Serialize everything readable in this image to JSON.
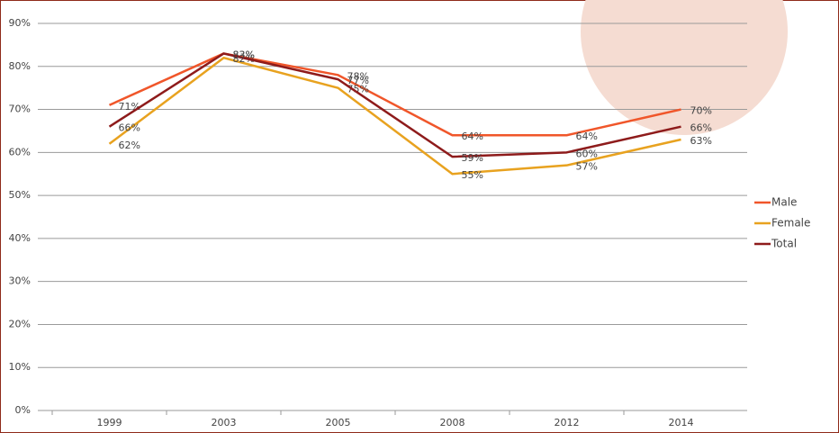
{
  "chart_data": {
    "type": "line",
    "categories": [
      "1999",
      "2003",
      "2005",
      "2008",
      "2012",
      "2014"
    ],
    "series": [
      {
        "name": "Male",
        "color": "#f0562a",
        "values": [
          71,
          83,
          78,
          64,
          64,
          70
        ],
        "value_labels": [
          "71%",
          "83%",
          "78%",
          "64%",
          "64%",
          "70%"
        ]
      },
      {
        "name": "Female",
        "color": "#e8a21f",
        "values": [
          62,
          82,
          75,
          55,
          57,
          63
        ],
        "value_labels": [
          "62%",
          "82%",
          "75%",
          "55%",
          "57%",
          "63%"
        ]
      },
      {
        "name": "Total",
        "color": "#8e1b1b",
        "values": [
          66,
          83,
          77,
          59,
          60,
          66
        ],
        "value_labels": [
          "66%",
          "83%",
          "77%",
          "59%",
          "60%",
          "66%"
        ]
      }
    ],
    "ylim": [
      0,
      90
    ],
    "yticks": [
      {
        "value": 0,
        "label": "0%"
      },
      {
        "value": 10,
        "label": "10%"
      },
      {
        "value": 20,
        "label": "20%"
      },
      {
        "value": 30,
        "label": "30%"
      },
      {
        "value": 40,
        "label": "40%"
      },
      {
        "value": 50,
        "label": "50%"
      },
      {
        "value": 60,
        "label": "60%"
      },
      {
        "value": 70,
        "label": "70%"
      },
      {
        "value": 80,
        "label": "80%"
      },
      {
        "value": 90,
        "label": "90%"
      }
    ],
    "grid": true,
    "legend": "right"
  }
}
